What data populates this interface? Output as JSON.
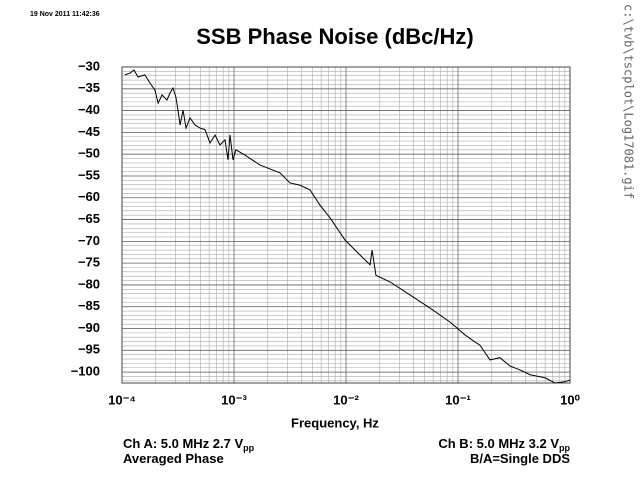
{
  "timestamp": "19 Nov 2011 11:42:36",
  "file_path": "c:\\tvb\\tscplot\\Log17081.gif",
  "notes_left": [
    {
      "text": "Ch A: 5.0 MHz 2.7 V",
      "sub": "pp"
    },
    {
      "text": "Averaged Phase"
    }
  ],
  "notes_right": [
    {
      "text": "Ch B: 5.0 MHz 3.2 V",
      "sub": "pp"
    },
    {
      "text": "B/A=Single DDS"
    }
  ],
  "chart_data": {
    "type": "line",
    "title": "SSB Phase Noise (dBc/Hz)",
    "x_label": "Frequency, Hz",
    "xlog": true,
    "grid": true,
    "xlim": [
      0.0001,
      1
    ],
    "xticks": [
      {
        "value": 0.0001,
        "label": "10⁻⁴"
      },
      {
        "value": 0.001,
        "label": "10⁻³"
      },
      {
        "value": 0.01,
        "label": "10⁻²"
      },
      {
        "value": 0.1,
        "label": "10⁻¹"
      },
      {
        "value": 1,
        "label": "10⁰"
      }
    ],
    "ylim": [
      -102.5,
      -30
    ],
    "yticks": [
      {
        "value": -30,
        "label": "−30"
      },
      {
        "value": -35,
        "label": "−35"
      },
      {
        "value": -40,
        "label": "−40"
      },
      {
        "value": -45,
        "label": "−45"
      },
      {
        "value": -50,
        "label": "−50"
      },
      {
        "value": -55,
        "label": "−55"
      },
      {
        "value": -60,
        "label": "−60"
      },
      {
        "value": -65,
        "label": "−65"
      },
      {
        "value": -70,
        "label": "−70"
      },
      {
        "value": -75,
        "label": "−75"
      },
      {
        "value": -80,
        "label": "−80"
      },
      {
        "value": -85,
        "label": "−85"
      },
      {
        "value": -90,
        "label": "−90"
      },
      {
        "value": -95,
        "label": "−95"
      },
      {
        "value": -100,
        "label": "−100"
      }
    ],
    "x": [
      0.000106,
      0.000118,
      0.000128,
      0.000139,
      0.00016,
      0.000178,
      0.000197,
      0.00021,
      0.000228,
      0.000252,
      0.000268,
      0.000285,
      0.000303,
      0.000316,
      0.00033,
      0.000351,
      0.000373,
      0.000405,
      0.000449,
      0.000497,
      0.000551,
      0.000611,
      0.000677,
      0.00075,
      0.000831,
      0.000884,
      0.000921,
      0.00098,
      0.00104,
      0.00125,
      0.00171,
      0.00258,
      0.00316,
      0.00388,
      0.00477,
      0.00586,
      0.0072,
      0.0098,
      0.0133,
      0.0164,
      0.0171,
      0.0185,
      0.0247,
      0.0373,
      0.0562,
      0.0848,
      0.116,
      0.142,
      0.157,
      0.193,
      0.237,
      0.291,
      0.358,
      0.44,
      0.598,
      0.735,
      0.902,
      1.0
    ],
    "series": [
      {
        "color": "#000000",
        "values": [
          -31.8,
          -31.4,
          -30.7,
          -32.3,
          -31.8,
          -33.7,
          -35.3,
          -38.3,
          -36.4,
          -37.6,
          -36,
          -34.8,
          -36.9,
          -39.9,
          -43.3,
          -39.9,
          -44,
          -41.7,
          -43.3,
          -44,
          -44.4,
          -47.4,
          -45.6,
          -47.9,
          -46.7,
          -51.3,
          -45.6,
          -51.3,
          -49,
          -50.2,
          -52.5,
          -54.3,
          -56.6,
          -57.1,
          -58.2,
          -61.7,
          -64.6,
          -69.7,
          -73.1,
          -75.4,
          -72,
          -77.8,
          -79.3,
          -82.3,
          -85.3,
          -88.5,
          -91.5,
          -93.1,
          -93.8,
          -97.2,
          -96.7,
          -98.6,
          -99.5,
          -100.6,
          -101.3,
          -102.5,
          -102.2,
          -101.8
        ]
      }
    ]
  }
}
